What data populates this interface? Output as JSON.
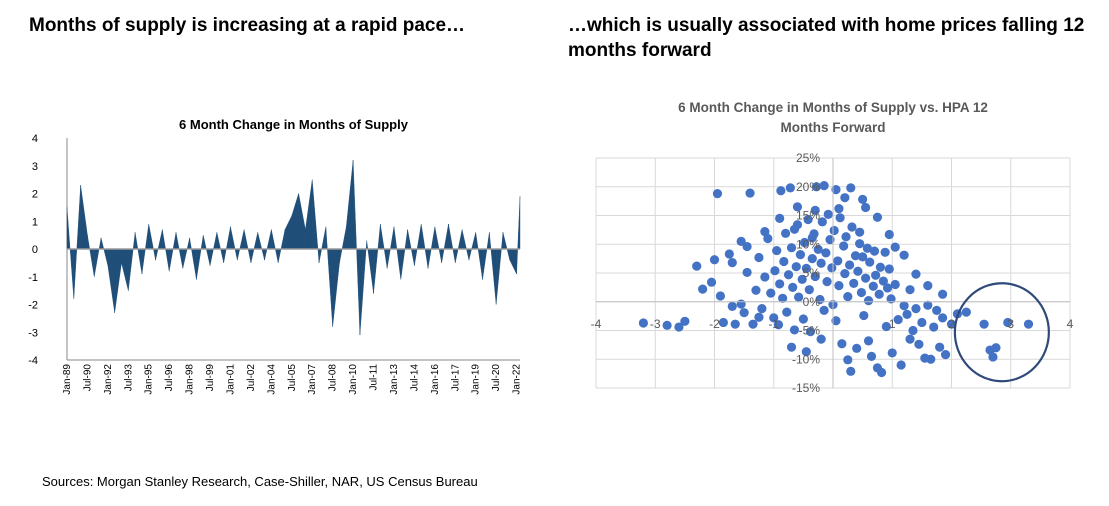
{
  "headlines": {
    "left": "Months of supply is increasing at a rapid pace…",
    "right": "…which is usually associated with home prices falling 12 months forward"
  },
  "footer": "Sources: Morgan Stanley Research, Case-Shiller, NAR, US Census Bureau",
  "colors": {
    "area": "#1f4e79",
    "dots": "#4472c4",
    "circle": "#2f4a7a",
    "grid": "#d9d9d9"
  },
  "chart_data": [
    {
      "type": "area",
      "title": "6 Month Change in Months of Supply",
      "xlabel": "",
      "ylabel": "",
      "ylim": [
        -4,
        4
      ],
      "yticks": [
        4,
        3,
        2,
        1,
        0,
        -1,
        -2,
        -3,
        -4
      ],
      "grid": false,
      "tick_labels": [
        "Jan-89",
        "Jul-90",
        "Jan-92",
        "Jul-93",
        "Jan-95",
        "Jul-96",
        "Jan-98",
        "Jul-99",
        "Jan-01",
        "Jul-02",
        "Jan-04",
        "Jul-05",
        "Jan-07",
        "Jul-08",
        "Jan-10",
        "Jul-11",
        "Jan-13",
        "Jul-14",
        "Jan-16",
        "Jul-17",
        "Jan-19",
        "Jul-20",
        "Jan-22"
      ],
      "x": [
        1989.0,
        1989.5,
        1990.0,
        1990.5,
        1991.0,
        1991.5,
        1992.0,
        1992.5,
        1993.0,
        1993.5,
        1994.0,
        1994.5,
        1995.0,
        1995.5,
        1996.0,
        1996.5,
        1997.0,
        1997.5,
        1998.0,
        1998.5,
        1999.0,
        1999.5,
        2000.0,
        2000.5,
        2001.0,
        2001.5,
        2002.0,
        2002.5,
        2003.0,
        2003.5,
        2004.0,
        2004.5,
        2005.0,
        2005.5,
        2006.0,
        2006.5,
        2007.0,
        2007.5,
        2008.0,
        2008.5,
        2009.0,
        2009.5,
        2010.0,
        2010.5,
        2011.0,
        2011.5,
        2012.0,
        2012.5,
        2013.0,
        2013.5,
        2014.0,
        2014.5,
        2015.0,
        2015.5,
        2016.0,
        2016.5,
        2017.0,
        2017.5,
        2018.0,
        2018.5,
        2019.0,
        2019.5,
        2020.0,
        2020.5,
        2021.0,
        2021.5,
        2022.0,
        2022.25
      ],
      "values": [
        1.5,
        -1.8,
        2.3,
        0.5,
        -1.0,
        0.4,
        -0.6,
        -2.3,
        -0.5,
        -1.5,
        0.6,
        -0.9,
        0.9,
        -0.4,
        0.7,
        -0.8,
        0.6,
        -0.7,
        0.4,
        -1.1,
        0.5,
        -0.6,
        0.6,
        -0.5,
        0.8,
        -0.4,
        0.7,
        -0.5,
        0.6,
        -0.4,
        0.7,
        -0.5,
        0.7,
        1.2,
        2.0,
        0.7,
        2.5,
        -0.5,
        0.8,
        -2.8,
        -0.5,
        0.8,
        3.2,
        -3.1,
        0.3,
        -1.6,
        0.9,
        -0.7,
        0.8,
        -1.1,
        0.7,
        -0.6,
        0.9,
        -0.7,
        0.8,
        -0.5,
        0.9,
        -0.5,
        0.7,
        -0.4,
        0.6,
        -1.1,
        0.6,
        -2.0,
        0.6,
        -0.4,
        -0.9,
        1.9
      ]
    },
    {
      "type": "scatter",
      "title": "6 Month Change in Months of Supply vs. HPA 12 Months Forward",
      "xlabel": "",
      "ylabel": "",
      "xlim": [
        -4,
        4
      ],
      "ylim": [
        -15,
        25
      ],
      "xticks": [
        -4,
        -3,
        -2,
        -1,
        0,
        1,
        2,
        3,
        4
      ],
      "yticks": [
        "25%",
        "20%",
        "15%",
        "10%",
        "5%",
        "0%",
        "-5%",
        "-10%",
        "-15%"
      ],
      "grid": true,
      "annotation": "circle around points with x between 2 and 3.5 and y between -12 and 0",
      "points": [
        [
          -3.2,
          -3.7
        ],
        [
          -2.8,
          -4.1
        ],
        [
          -2.6,
          -4.4
        ],
        [
          -2.5,
          -3.4
        ],
        [
          -2.3,
          6.2
        ],
        [
          -2.2,
          2.2
        ],
        [
          -2.0,
          7.3
        ],
        [
          -1.95,
          18.8
        ],
        [
          -1.85,
          -3.6
        ],
        [
          -1.75,
          8.3
        ],
        [
          -1.7,
          -0.8
        ],
        [
          -1.65,
          -3.9
        ],
        [
          -1.55,
          10.5
        ],
        [
          -1.5,
          -1.9
        ],
        [
          -1.45,
          5.1
        ],
        [
          -1.4,
          18.9
        ],
        [
          -1.35,
          -3.9
        ],
        [
          -1.3,
          2.0
        ],
        [
          -1.25,
          7.7
        ],
        [
          -1.2,
          -1.2
        ],
        [
          -1.15,
          4.3
        ],
        [
          -1.1,
          11.0
        ],
        [
          -1.05,
          1.5
        ],
        [
          -1.0,
          -2.8
        ],
        [
          -0.98,
          5.4
        ],
        [
          -0.95,
          8.9
        ],
        [
          -0.92,
          -4.0
        ],
        [
          -0.9,
          3.1
        ],
        [
          -0.88,
          19.3
        ],
        [
          -0.85,
          0.6
        ],
        [
          -0.83,
          7.0
        ],
        [
          -0.8,
          11.9
        ],
        [
          -0.78,
          -1.8
        ],
        [
          -0.75,
          4.7
        ],
        [
          -0.72,
          19.8
        ],
        [
          -0.7,
          9.4
        ],
        [
          -0.68,
          2.5
        ],
        [
          -0.65,
          -4.9
        ],
        [
          -0.62,
          6.1
        ],
        [
          -0.6,
          13.4
        ],
        [
          -0.58,
          0.8
        ],
        [
          -0.55,
          8.2
        ],
        [
          -0.52,
          3.9
        ],
        [
          -0.5,
          -3.0
        ],
        [
          -0.48,
          10.3
        ],
        [
          -0.45,
          5.8
        ],
        [
          -0.42,
          14.3
        ],
        [
          -0.4,
          2.1
        ],
        [
          -0.38,
          -5.2
        ],
        [
          -0.35,
          7.5
        ],
        [
          -0.32,
          11.8
        ],
        [
          -0.3,
          4.4
        ],
        [
          -0.28,
          20.0
        ],
        [
          -0.25,
          9.1
        ],
        [
          -0.22,
          0.4
        ],
        [
          -0.2,
          6.7
        ],
        [
          -0.18,
          13.9
        ],
        [
          -0.15,
          -1.5
        ],
        [
          -0.12,
          8.5
        ],
        [
          -0.1,
          3.5
        ],
        [
          -0.08,
          15.2
        ],
        [
          -0.05,
          10.8
        ],
        [
          -0.02,
          5.9
        ],
        [
          0.0,
          -0.5
        ],
        [
          0.02,
          12.4
        ],
        [
          0.05,
          19.5
        ],
        [
          0.08,
          7.1
        ],
        [
          0.1,
          2.8
        ],
        [
          0.12,
          14.6
        ],
        [
          0.15,
          -7.3
        ],
        [
          0.18,
          9.7
        ],
        [
          0.2,
          4.9
        ],
        [
          0.22,
          11.3
        ],
        [
          0.25,
          0.9
        ],
        [
          0.28,
          6.4
        ],
        [
          0.3,
          -12.1
        ],
        [
          0.32,
          13.0
        ],
        [
          0.35,
          3.2
        ],
        [
          0.38,
          8.0
        ],
        [
          0.4,
          -8.1
        ],
        [
          0.42,
          5.3
        ],
        [
          0.45,
          10.1
        ],
        [
          0.48,
          1.6
        ],
        [
          0.5,
          7.8
        ],
        [
          0.52,
          -2.4
        ],
        [
          0.55,
          4.1
        ],
        [
          0.58,
          9.3
        ],
        [
          0.6,
          0.2
        ],
        [
          0.62,
          6.9
        ],
        [
          0.65,
          -9.5
        ],
        [
          0.68,
          2.7
        ],
        [
          0.7,
          8.8
        ],
        [
          0.72,
          4.6
        ],
        [
          0.75,
          -11.5
        ],
        [
          0.78,
          1.3
        ],
        [
          0.8,
          6.0
        ],
        [
          0.82,
          -12.3
        ],
        [
          0.85,
          3.6
        ],
        [
          0.88,
          8.6
        ],
        [
          0.9,
          -4.3
        ],
        [
          0.92,
          2.4
        ],
        [
          0.95,
          5.7
        ],
        [
          0.98,
          0.5
        ],
        [
          1.0,
          -8.9
        ],
        [
          1.05,
          3.0
        ],
        [
          1.1,
          -3.1
        ],
        [
          1.15,
          -11.0
        ],
        [
          1.2,
          -0.7
        ],
        [
          1.25,
          -2.2
        ],
        [
          1.3,
          2.1
        ],
        [
          1.35,
          -5.0
        ],
        [
          1.4,
          -1.2
        ],
        [
          1.45,
          -7.4
        ],
        [
          1.5,
          -3.6
        ],
        [
          1.55,
          -9.8
        ],
        [
          1.6,
          -0.6
        ],
        [
          1.7,
          -4.4
        ],
        [
          1.75,
          -1.5
        ],
        [
          1.8,
          -7.9
        ],
        [
          1.85,
          -2.8
        ],
        [
          1.9,
          -9.2
        ],
        [
          2.0,
          -3.9
        ],
        [
          2.1,
          -2.1
        ],
        [
          2.25,
          -1.8
        ],
        [
          2.55,
          -3.9
        ],
        [
          2.65,
          -8.4
        ],
        [
          2.7,
          -9.6
        ],
        [
          2.75,
          -8.0
        ],
        [
          2.95,
          -3.6
        ],
        [
          3.3,
          -3.9
        ],
        [
          -0.15,
          20.2
        ],
        [
          0.3,
          19.8
        ],
        [
          0.55,
          16.4
        ],
        [
          0.1,
          16.2
        ],
        [
          0.5,
          17.8
        ],
        [
          -0.6,
          16.5
        ],
        [
          -0.3,
          15.9
        ],
        [
          0.2,
          18.1
        ],
        [
          -0.9,
          14.5
        ],
        [
          0.75,
          14.7
        ],
        [
          -1.15,
          12.2
        ],
        [
          -0.65,
          12.6
        ],
        [
          0.45,
          12.1
        ],
        [
          0.95,
          11.7
        ],
        [
          -1.45,
          9.6
        ],
        [
          -0.35,
          11.1
        ],
        [
          1.05,
          9.5
        ],
        [
          -1.7,
          6.8
        ],
        [
          1.2,
          8.1
        ],
        [
          -2.05,
          3.4
        ],
        [
          1.4,
          4.8
        ],
        [
          -1.9,
          1.0
        ],
        [
          1.6,
          2.8
        ],
        [
          -1.55,
          -0.4
        ],
        [
          1.85,
          1.3
        ],
        [
          -1.25,
          -2.7
        ],
        [
          -0.2,
          -6.5
        ],
        [
          0.6,
          -6.8
        ],
        [
          -0.45,
          -8.7
        ],
        [
          0.25,
          -10.1
        ],
        [
          1.3,
          -6.5
        ],
        [
          1.65,
          -10.0
        ],
        [
          -0.7,
          -7.9
        ],
        [
          0.05,
          -3.3
        ]
      ]
    }
  ]
}
